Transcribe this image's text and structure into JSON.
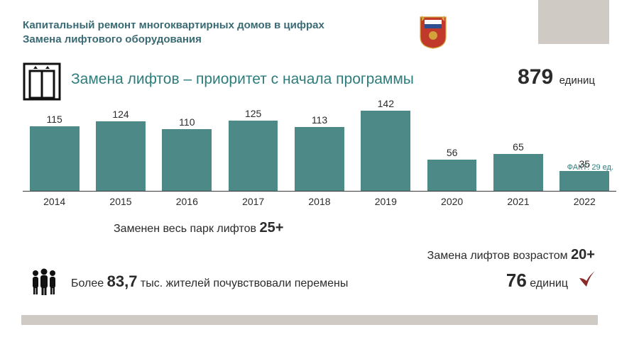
{
  "header": {
    "line1": "Капитальный ремонт многоквартирных домов в цифрах",
    "line2": "Замена лифтового оборудования",
    "title_color": "#3a6a73",
    "title_fontsize": 15
  },
  "subtitle": {
    "text": "Замена лифтов – приоритет с начала программы",
    "color": "#2e7c7c",
    "fontsize": 21
  },
  "total": {
    "value": "879",
    "unit": "единиц",
    "value_fontsize": 30
  },
  "chart": {
    "type": "bar",
    "categories": [
      "2014",
      "2015",
      "2016",
      "2017",
      "2018",
      "2019",
      "2020",
      "2021",
      "2022"
    ],
    "values": [
      115,
      124,
      110,
      125,
      113,
      142,
      56,
      65,
      35
    ],
    "bar_color": "#4d8a87",
    "ymax": 150,
    "value_fontsize": 14,
    "category_fontsize": 14,
    "axis_color": "#3a3a3a",
    "fact_note": "ФАКТ: 29 ед.",
    "fact_note_color": "#2e7c7c"
  },
  "replaced_park": {
    "prefix": "Заменен весь парк лифтов ",
    "bold": "25+"
  },
  "age_replace": {
    "prefix": "Замена лифтов возрастом ",
    "bold": "20+"
  },
  "residents": {
    "prefix": "Более ",
    "bold": "83,7",
    "suffix": " тыс. жителей почувствовали перемены"
  },
  "units76": {
    "bold": "76",
    "unit": " единиц"
  },
  "colors": {
    "background": "#ffffff",
    "gray_block": "#cfcac3",
    "text": "#2b2b2b",
    "emblem_red": "#c0392b",
    "emblem_blue": "#2e4f8f",
    "emblem_gold": "#d4a23a",
    "checkmark": "#8a2a2a"
  }
}
